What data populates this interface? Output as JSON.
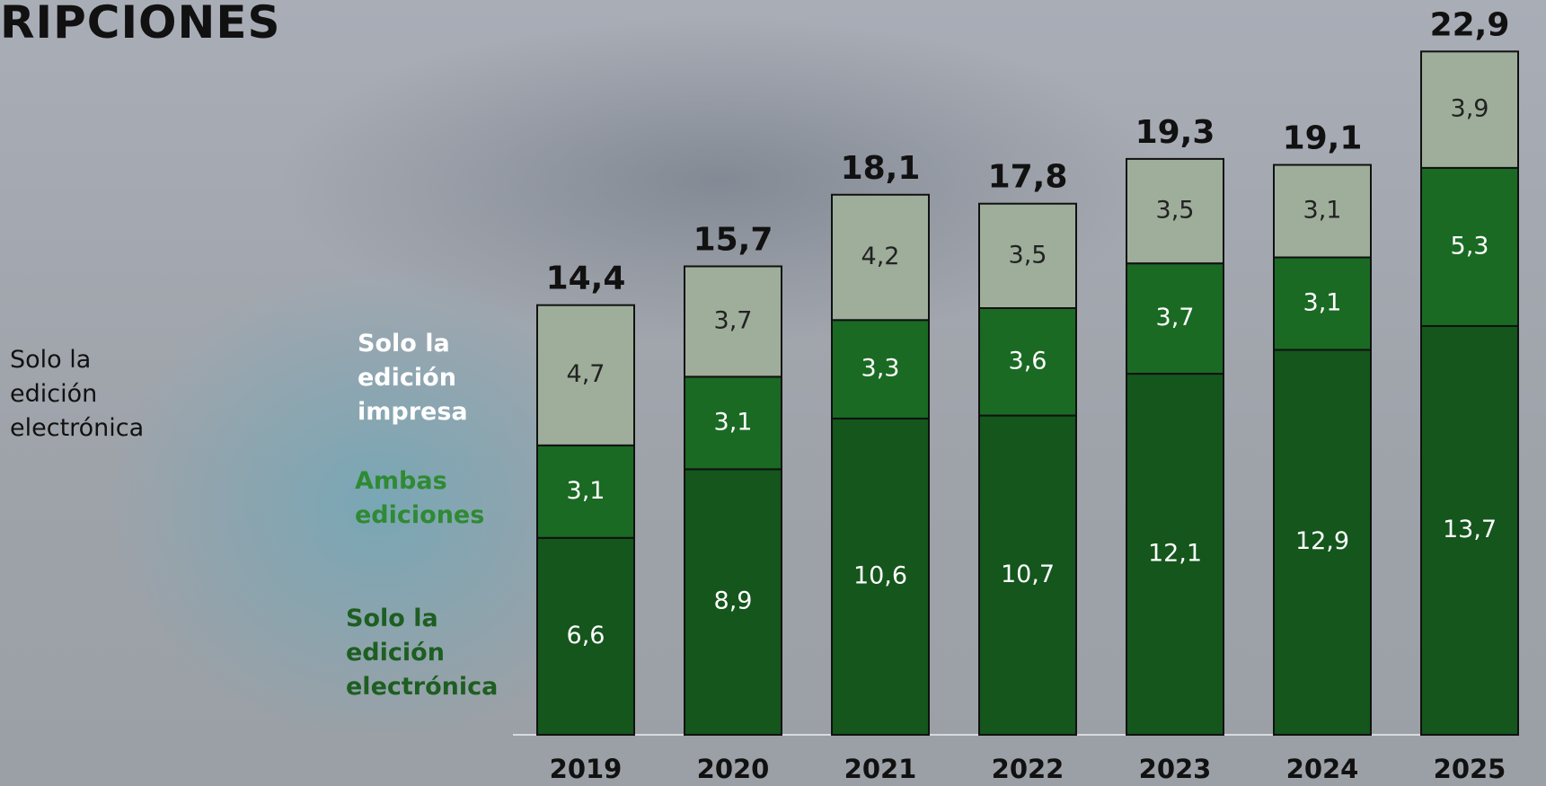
{
  "title": "RIPCIONES",
  "side_note": "Solo la edición electrónica",
  "chart_data": {
    "type": "stacked_bar",
    "categories": [
      "2019",
      "2020",
      "2021",
      "2022",
      "2023",
      "2024",
      "2025"
    ],
    "series": [
      {
        "name": "Solo la edición electrónica",
        "color": "#14561c",
        "values": [
          6.6,
          8.9,
          10.6,
          10.7,
          12.1,
          12.9,
          13.7
        ],
        "value_labels": [
          "6,6",
          "8,9",
          "10,6",
          "10,7",
          "12,1",
          "12,9",
          "13,7"
        ]
      },
      {
        "name": "Ambas ediciones",
        "color": "#1a6a23",
        "values": [
          3.1,
          3.1,
          3.3,
          3.6,
          3.7,
          3.1,
          5.3
        ],
        "value_labels": [
          "3,1",
          "3,1",
          "3,3",
          "3,6",
          "3,7",
          "3,1",
          "5,3"
        ]
      },
      {
        "name": "Solo la edición impresa",
        "color": "#9eae9b",
        "values": [
          4.7,
          3.7,
          4.2,
          3.5,
          3.5,
          3.1,
          3.9
        ],
        "value_labels": [
          "4,7",
          "3,7",
          "4,2",
          "3,5",
          "3,5",
          "3,1",
          "3,9"
        ]
      }
    ],
    "totals": {
      "values": [
        14.4,
        15.7,
        18.1,
        17.8,
        19.3,
        19.1,
        22.9
      ],
      "value_labels": [
        "14,4",
        "15,7",
        "18,1",
        "17,8",
        "19,3",
        "19,1",
        "22,9"
      ]
    },
    "ylim": [
      0,
      23
    ]
  }
}
